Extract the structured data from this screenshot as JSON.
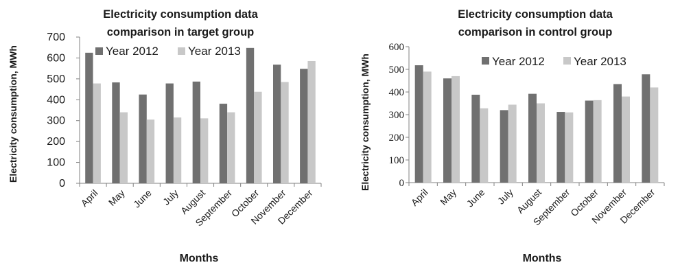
{
  "colors": {
    "year_2012": "#707070",
    "year_2013": "#c8c8c8",
    "axis": "#808080"
  },
  "chart_data": [
    {
      "type": "bar",
      "title": [
        "Electricity consumption data",
        "comparison in target group"
      ],
      "xlabel": "Months",
      "ylabel": "Electricity consumption, MWh",
      "ylim": [
        0,
        700
      ],
      "yticks": [
        "0",
        "100",
        "200",
        "300",
        "400",
        "500",
        "600",
        "700"
      ],
      "grid": false,
      "legend_position": "top",
      "categories": [
        "April",
        "May",
        "June",
        "July",
        "August",
        "September",
        "October",
        "November",
        "December"
      ],
      "series": [
        {
          "name": "Year 2012",
          "values": [
            625,
            483,
            425,
            478,
            487,
            381,
            648,
            568,
            548
          ]
        },
        {
          "name": "Year 2013",
          "values": [
            478,
            340,
            305,
            315,
            311,
            340,
            438,
            485,
            585
          ]
        }
      ]
    },
    {
      "type": "bar",
      "title": [
        "Electricity consumption data",
        "comparison in control group"
      ],
      "xlabel": "Months",
      "ylabel": "Electricity consumption, MWh",
      "ylim": [
        0,
        600
      ],
      "yticks": [
        "0",
        "100",
        "200",
        "300",
        "400",
        "500",
        "600"
      ],
      "grid": false,
      "legend_position": "top",
      "categories": [
        "April",
        "May",
        "June",
        "July",
        "August",
        "September",
        "October",
        "November",
        "December"
      ],
      "series": [
        {
          "name": "Year 2012",
          "values": [
            518,
            460,
            388,
            320,
            392,
            312,
            362,
            435,
            478
          ]
        },
        {
          "name": "Year 2013",
          "values": [
            490,
            470,
            328,
            344,
            350,
            310,
            364,
            380,
            420
          ]
        }
      ]
    }
  ]
}
